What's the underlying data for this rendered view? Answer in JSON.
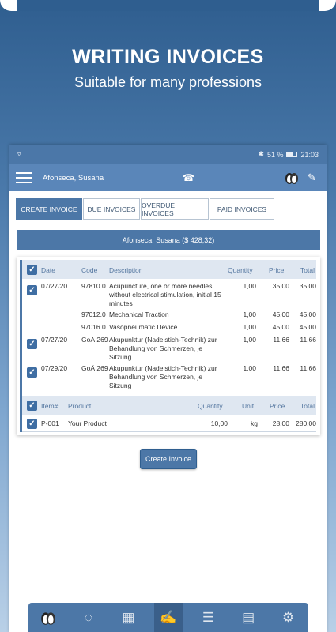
{
  "promo": {
    "title": "WRITING INVOICES",
    "subtitle": "Suitable for many professions"
  },
  "statusbar": {
    "battery": "51 %",
    "time": "21:03"
  },
  "appbar": {
    "patient_name": "Afonseca, Susana"
  },
  "tabs": [
    {
      "label": "CREATE INVOICE",
      "active": true
    },
    {
      "label": "DUE INVOICES",
      "active": false
    },
    {
      "label": "OVERDUE INVOICES",
      "active": false
    },
    {
      "label": "PAID INVOICES",
      "active": false
    }
  ],
  "banner": "Afonseca, Susana ($ 428,32)",
  "treatments": {
    "headers": {
      "date": "Date",
      "code": "Code",
      "description": "Description",
      "quantity": "Quantity",
      "price": "Price",
      "total": "Total"
    },
    "rows": [
      {
        "checked": true,
        "date": "07/27/20",
        "code": "97810.0",
        "description": "Acupuncture, one or more needles, without electrical stimulation, initial 15 minutes",
        "quantity": "1,00",
        "price": "35,00",
        "total": "35,00"
      },
      {
        "checked": false,
        "date": "",
        "code": "97012.0",
        "description": "Mechanical Traction",
        "quantity": "1,00",
        "price": "45,00",
        "total": "45,00"
      },
      {
        "checked": false,
        "date": "",
        "code": "97016.0",
        "description": "Vasopneumatic Device",
        "quantity": "1,00",
        "price": "45,00",
        "total": "45,00"
      },
      {
        "checked": true,
        "date": "07/27/20",
        "code": "GoÄ 269",
        "description": "Akupunktur (Nadelstich-Technik) zur Behandlung von Schmerzen, je Sitzung",
        "quantity": "1,00",
        "price": "11,66",
        "total": "11,66"
      },
      {
        "checked": true,
        "date": "07/29/20",
        "code": "GoÄ 269",
        "description": "Akupunktur (Nadelstich-Technik) zur Behandlung von Schmerzen, je Sitzung",
        "quantity": "1,00",
        "price": "11,66",
        "total": "11,66"
      }
    ]
  },
  "products": {
    "headers": {
      "item": "Item#",
      "product": "Product",
      "quantity": "Quantity",
      "unit": "Unit",
      "price": "Price",
      "total": "Total"
    },
    "rows": [
      {
        "checked": true,
        "item": "P-001",
        "product": "Your Product",
        "quantity": "10,00",
        "unit": "kg",
        "price": "28,00",
        "total": "280,00"
      }
    ]
  },
  "create_button": "Create Invoice",
  "colors": {
    "accent": "#4c77a7",
    "appbar": "#5a86b9",
    "header_bg": "#dfe7f1"
  },
  "nav_icons": [
    "patients-icon",
    "acupuncture-icon",
    "calendar-icon",
    "invoice-icon",
    "checklist-icon",
    "document-icon",
    "settings-icon"
  ]
}
